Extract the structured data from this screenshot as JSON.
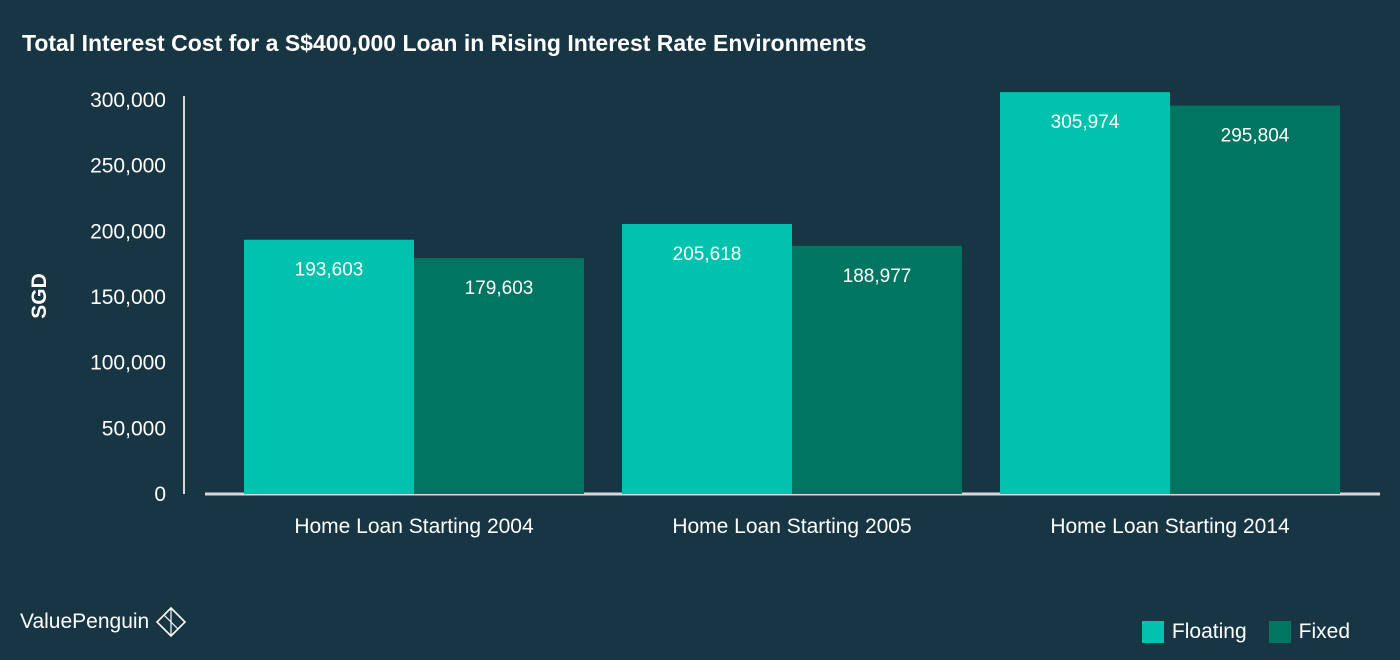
{
  "header": {
    "title": "Total Interest Cost for a S$400,000 Loan in Rising Interest Rate Environments"
  },
  "chart_data": {
    "type": "bar",
    "title": "Total Interest Cost for a S$400,000 Loan in Rising Interest Rate Environments",
    "xlabel": "",
    "ylabel": "SGD",
    "ylim": [
      0,
      300000
    ],
    "yticks": [
      0,
      50000,
      100000,
      150000,
      200000,
      250000,
      300000
    ],
    "ytick_labels": [
      "0",
      "50,000",
      "100,000",
      "150,000",
      "200,000",
      "250,000",
      "300,000"
    ],
    "categories": [
      "Home Loan Starting 2004",
      "Home Loan Starting 2005",
      "Home Loan Starting 2014"
    ],
    "series": [
      {
        "name": "Floating",
        "color": "#00C2AD",
        "values": [
          193603,
          205618,
          305974
        ],
        "labels": [
          "193,603",
          "205,618",
          "305,974"
        ]
      },
      {
        "name": "Fixed",
        "color": "#007561",
        "values": [
          179603,
          188977,
          295804
        ],
        "labels": [
          "179,603",
          "188,977",
          "295,804"
        ]
      }
    ],
    "grid": false,
    "legend_position": "bottom-right"
  },
  "brand": {
    "name": "ValuePenguin"
  },
  "icons": {
    "brand_logo": "penguin-diamond-icon"
  }
}
